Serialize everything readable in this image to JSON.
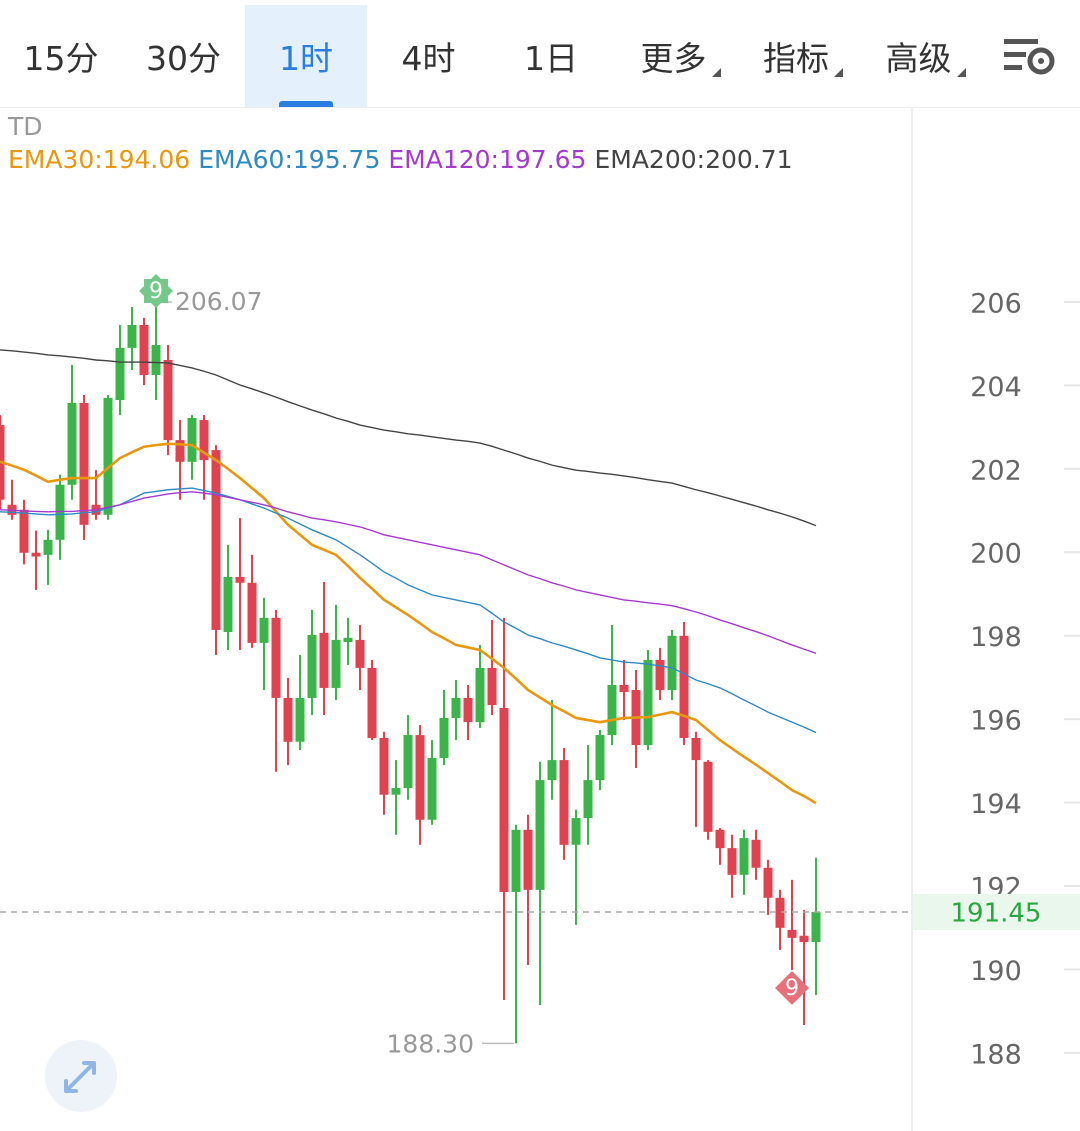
{
  "tabs": [
    {
      "label": "15分"
    },
    {
      "label": "30分"
    },
    {
      "label": "1时",
      "active": true
    },
    {
      "label": "4时"
    },
    {
      "label": "1日"
    },
    {
      "label": "更多",
      "menu": true
    },
    {
      "label": "指标",
      "menu": true
    },
    {
      "label": "高级",
      "menu": true
    }
  ],
  "chart_data": {
    "type": "candlestick",
    "indicator": "TD",
    "categories": [
      null,
      null,
      null,
      null,
      null,
      null,
      null,
      null,
      null,
      null,
      null,
      null,
      null,
      null,
      null,
      null,
      null,
      null,
      null,
      null,
      null,
      null,
      null,
      null,
      null,
      null,
      null,
      null,
      null,
      null,
      null,
      null,
      null,
      null,
      null,
      null,
      null,
      null,
      null,
      null,
      null,
      null,
      null,
      null,
      null,
      null,
      null,
      null,
      null,
      null,
      null,
      null,
      null,
      null,
      null,
      null,
      null,
      null,
      null,
      null,
      null,
      null,
      null,
      null,
      null,
      null,
      null,
      null,
      null
    ],
    "open": [
      203.12,
      201.21,
      201.09,
      200.06,
      200.01,
      200.37,
      201.69,
      203.65,
      201.21,
      200.97,
      203.72,
      204.97,
      205.52,
      204.32,
      204.68,
      202.76,
      202.24,
      203.24,
      202.52,
      198.16,
      199.48,
      199.34,
      197.9,
      198.5,
      196.58,
      195.53,
      196.58,
      198.14,
      196.82,
      197.92,
      197.97,
      197.3,
      195.62,
      194.26,
      194.42,
      195.69,
      193.66,
      195.14,
      196.1,
      196.58,
      196.0,
      197.3,
      196.34,
      191.93,
      193.42,
      191.98,
      194.61,
      195.09,
      193.06,
      193.7,
      194.61,
      195.69,
      196.89,
      196.77,
      195.45,
      197.49,
      196.77,
      198.07,
      195.62,
      195.05,
      193.42,
      192.98,
      192.34,
      193.18,
      192.51,
      191.79,
      191.02,
      190.88,
      190.73
    ],
    "high": [
      203.36,
      201.81,
      201.33,
      200.59,
      200.61,
      201.93,
      204.56,
      203.84,
      202.04,
      203.84,
      205.52,
      205.95,
      205.69,
      206.07,
      205.04,
      203.24,
      203.36,
      203.36,
      202.64,
      200.25,
      200.89,
      200.01,
      198.98,
      198.69,
      197.06,
      197.61,
      198.69,
      199.36,
      198.81,
      198.5,
      198.33,
      197.49,
      195.77,
      195.09,
      196.17,
      195.93,
      195.57,
      196.77,
      197.01,
      196.89,
      197.85,
      198.45,
      198.5,
      193.54,
      193.78,
      195.05,
      196.53,
      195.38,
      193.9,
      195.45,
      195.81,
      198.33,
      197.49,
      197.25,
      197.73,
      197.78,
      198.21,
      198.4,
      195.77,
      195.09,
      193.46,
      193.3,
      193.42,
      193.42,
      192.7,
      191.98,
      192.22,
      191.5,
      192.75
    ],
    "low": [
      201.09,
      200.85,
      199.78,
      199.17,
      199.29,
      199.89,
      201.33,
      200.37,
      200.85,
      200.85,
      203.36,
      204.44,
      204.08,
      203.72,
      202.4,
      201.33,
      201.81,
      201.33,
      197.61,
      197.73,
      197.73,
      197.78,
      196.77,
      194.81,
      194.97,
      195.33,
      196.17,
      196.17,
      196.53,
      197.37,
      196.77,
      195.57,
      193.78,
      193.3,
      194.14,
      193.06,
      193.54,
      194.97,
      195.57,
      195.57,
      195.86,
      196.17,
      189.34,
      188.3,
      190.18,
      189.22,
      194.14,
      192.7,
      191.14,
      193.06,
      194.37,
      195.45,
      196.05,
      194.9,
      195.33,
      196.53,
      196.53,
      195.45,
      193.49,
      193.18,
      192.58,
      191.79,
      191.86,
      192.22,
      191.38,
      190.54,
      190.06,
      188.74,
      189.46
    ],
    "close": [
      201.33,
      200.97,
      200.06,
      199.97,
      200.37,
      201.69,
      203.65,
      200.73,
      200.97,
      203.77,
      204.97,
      205.52,
      204.32,
      205.04,
      202.76,
      202.24,
      203.29,
      202.28,
      198.21,
      199.48,
      199.34,
      197.9,
      198.5,
      196.58,
      195.53,
      196.58,
      198.09,
      196.82,
      197.97,
      198.02,
      197.3,
      195.62,
      194.26,
      194.42,
      195.69,
      193.66,
      195.14,
      196.1,
      196.58,
      196.0,
      197.3,
      196.41,
      191.93,
      193.42,
      191.98,
      194.61,
      195.09,
      193.06,
      193.7,
      194.61,
      195.69,
      196.89,
      196.72,
      195.45,
      197.49,
      196.77,
      198.07,
      195.62,
      195.09,
      193.37,
      192.98,
      192.34,
      193.22,
      192.51,
      191.79,
      191.07,
      190.83,
      190.73,
      191.45
    ],
    "up_color": "#3bb54a",
    "down_color": "#e0434f",
    "lines": [
      {
        "name": "EMA30:194.06",
        "color": "#e8980f",
        "values": [
          202.24,
          202.15,
          202.05,
          201.91,
          201.76,
          201.81,
          201.85,
          201.85,
          201.85,
          202.09,
          202.33,
          202.47,
          202.6,
          202.64,
          202.67,
          202.66,
          202.64,
          202.46,
          202.28,
          202.07,
          201.85,
          201.61,
          201.37,
          201.05,
          200.73,
          200.49,
          200.25,
          200.13,
          200.01,
          199.74,
          199.46,
          199.2,
          198.93,
          198.75,
          198.57,
          198.37,
          198.16,
          198.01,
          197.85,
          197.79,
          197.73,
          197.52,
          197.3,
          197.04,
          196.77,
          196.59,
          196.41,
          196.26,
          196.1,
          196.05,
          196.0,
          196.05,
          196.1,
          196.11,
          196.12,
          196.18,
          196.24,
          196.15,
          196.05,
          195.81,
          195.57,
          195.37,
          195.17,
          194.98,
          194.78,
          194.58,
          194.37,
          194.23,
          194.06
        ]
      },
      {
        "name": "EMA60:195.75",
        "color": "#2f8ac4",
        "values": [
          201.04,
          201.03,
          201.01,
          200.99,
          200.97,
          200.98,
          200.99,
          201.02,
          201.04,
          201.13,
          201.21,
          201.35,
          201.49,
          201.53,
          201.57,
          201.59,
          201.61,
          201.55,
          201.49,
          201.41,
          201.33,
          201.23,
          201.13,
          201.01,
          200.89,
          200.75,
          200.61,
          200.49,
          200.37,
          200.19,
          200.01,
          199.81,
          199.6,
          199.45,
          199.29,
          199.17,
          199.05,
          198.99,
          198.93,
          198.87,
          198.81,
          198.61,
          198.4,
          198.25,
          198.09,
          198.0,
          197.9,
          197.82,
          197.73,
          197.64,
          197.54,
          197.49,
          197.44,
          197.42,
          197.39,
          197.35,
          197.3,
          197.16,
          197.01,
          196.92,
          196.82,
          196.68,
          196.53,
          196.39,
          196.24,
          196.12,
          196.0,
          195.88,
          195.75
        ]
      },
      {
        "name": "EMA120:197.65",
        "color": "#a43ad0",
        "values": [
          201.09,
          201.08,
          201.06,
          201.05,
          201.04,
          201.05,
          201.05,
          201.07,
          201.09,
          201.15,
          201.21,
          201.29,
          201.37,
          201.42,
          201.47,
          201.5,
          201.52,
          201.49,
          201.45,
          201.39,
          201.33,
          201.27,
          201.21,
          201.13,
          201.04,
          200.97,
          200.89,
          200.85,
          200.8,
          200.74,
          200.68,
          200.59,
          200.49,
          200.43,
          200.37,
          200.31,
          200.25,
          200.19,
          200.13,
          200.07,
          200.01,
          199.89,
          199.77,
          199.65,
          199.53,
          199.44,
          199.34,
          199.26,
          199.17,
          199.11,
          199.05,
          198.99,
          198.93,
          198.9,
          198.86,
          198.83,
          198.79,
          198.72,
          198.64,
          198.55,
          198.45,
          198.36,
          198.26,
          198.17,
          198.07,
          197.96,
          197.85,
          197.75,
          197.65
        ]
      },
      {
        "name": "EMA200:200.71",
        "color": "#444444",
        "values": [
          204.92,
          204.9,
          204.87,
          204.84,
          204.8,
          204.78,
          204.75,
          204.72,
          204.68,
          204.66,
          204.63,
          204.63,
          204.63,
          204.62,
          204.61,
          204.55,
          204.49,
          204.41,
          204.32,
          204.2,
          204.08,
          203.99,
          203.89,
          203.79,
          203.68,
          203.58,
          203.48,
          203.39,
          203.29,
          203.21,
          203.12,
          203.06,
          203.0,
          202.96,
          202.91,
          202.88,
          202.84,
          202.8,
          202.76,
          202.73,
          202.69,
          202.61,
          202.52,
          202.43,
          202.33,
          202.25,
          202.16,
          202.1,
          202.04,
          202.01,
          201.97,
          201.94,
          201.9,
          201.86,
          201.81,
          201.77,
          201.73,
          201.65,
          201.57,
          201.5,
          201.42,
          201.34,
          201.26,
          201.18,
          201.09,
          201.01,
          200.92,
          200.82,
          200.71
        ]
      }
    ],
    "ylim": [
      186.2,
      210.72
    ],
    "yticks": [
      188,
      190,
      192,
      194,
      196,
      198,
      200,
      202,
      204,
      206
    ],
    "grid": true,
    "current_price": 191.45,
    "max_label": 206.07,
    "min_label": {
      "value": 188.3,
      "label": "188.30"
    },
    "td_signals": [
      {
        "label": "9",
        "candle": 13,
        "side": "high",
        "color": "#74c98a"
      },
      {
        "label": "9",
        "candle": 66,
        "side": "low",
        "color": "#e8707a"
      }
    ]
  }
}
